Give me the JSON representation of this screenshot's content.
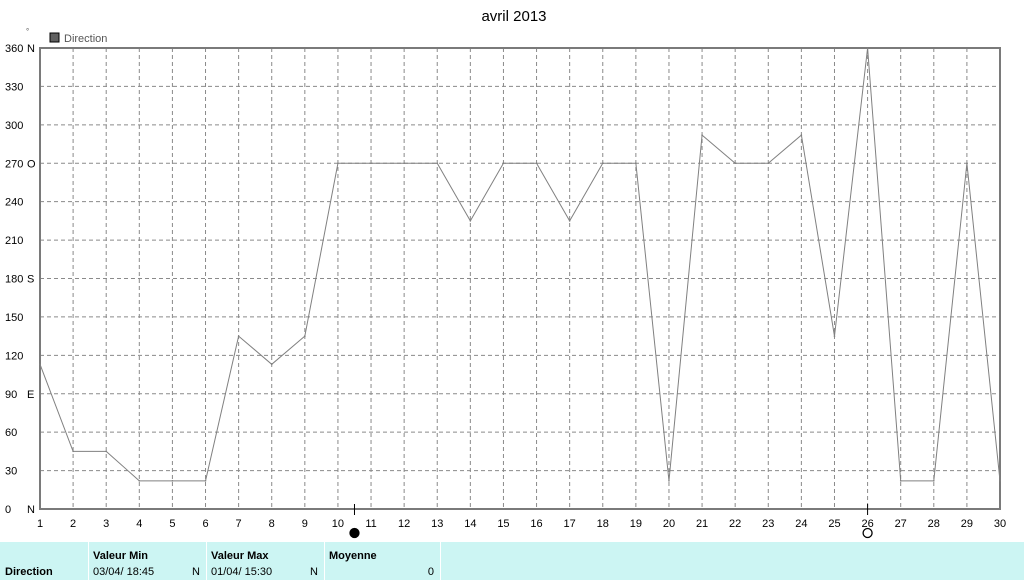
{
  "chart_data": {
    "type": "line",
    "title": "avril 2013",
    "unit_mark": "°",
    "legend": {
      "label": "Direction",
      "placement": "top-left",
      "color": "#606060"
    },
    "series": [
      {
        "name": "Direction",
        "color": "#808080",
        "x": [
          1,
          2,
          3,
          4,
          5,
          6,
          7,
          8,
          9,
          10,
          11,
          12,
          13,
          14,
          15,
          16,
          17,
          18,
          19,
          20,
          21,
          22,
          23,
          24,
          25,
          26,
          27,
          28,
          29,
          30
        ],
        "values": [
          113,
          45,
          45,
          22,
          22,
          22,
          135,
          113,
          135,
          270,
          270,
          270,
          270,
          225,
          270,
          270,
          225,
          270,
          270,
          22,
          292,
          270,
          270,
          292,
          135,
          360,
          22,
          22,
          270,
          22
        ]
      }
    ],
    "xlim": [
      1,
      30
    ],
    "ylim": [
      0,
      360
    ],
    "x_ticks": [
      "1",
      "2",
      "3",
      "4",
      "5",
      "6",
      "7",
      "8",
      "9",
      "10",
      "11",
      "12",
      "13",
      "14",
      "15",
      "16",
      "17",
      "18",
      "19",
      "20",
      "21",
      "22",
      "23",
      "24",
      "25",
      "26",
      "27",
      "28",
      "29",
      "30"
    ],
    "y_ticks": [
      {
        "value": 0,
        "label": "0",
        "dir": "N"
      },
      {
        "value": 30,
        "label": "30",
        "dir": ""
      },
      {
        "value": 60,
        "label": "60",
        "dir": ""
      },
      {
        "value": 90,
        "label": "90",
        "dir": "E"
      },
      {
        "value": 120,
        "label": "120",
        "dir": ""
      },
      {
        "value": 150,
        "label": "150",
        "dir": ""
      },
      {
        "value": 180,
        "label": "180",
        "dir": "S"
      },
      {
        "value": 210,
        "label": "210",
        "dir": ""
      },
      {
        "value": 240,
        "label": "240",
        "dir": ""
      },
      {
        "value": 270,
        "label": "270",
        "dir": "O"
      },
      {
        "value": 300,
        "label": "300",
        "dir": ""
      },
      {
        "value": 330,
        "label": "330",
        "dir": ""
      },
      {
        "value": 360,
        "label": "360",
        "dir": "N"
      }
    ],
    "grid": true,
    "moon_markers": [
      {
        "x": 10.5,
        "phase": "new-moon"
      },
      {
        "x": 26,
        "phase": "full-moon"
      }
    ]
  },
  "footer": {
    "name": "Direction",
    "min_header": "Valeur Min",
    "min_value": "03/04/  18:45",
    "min_unit": "N",
    "max_header": "Valeur Max",
    "max_value": "01/04/  15:30",
    "max_unit": "N",
    "avg_header": "Moyenne",
    "avg_value": "0",
    "background": "#ccf5f3"
  }
}
